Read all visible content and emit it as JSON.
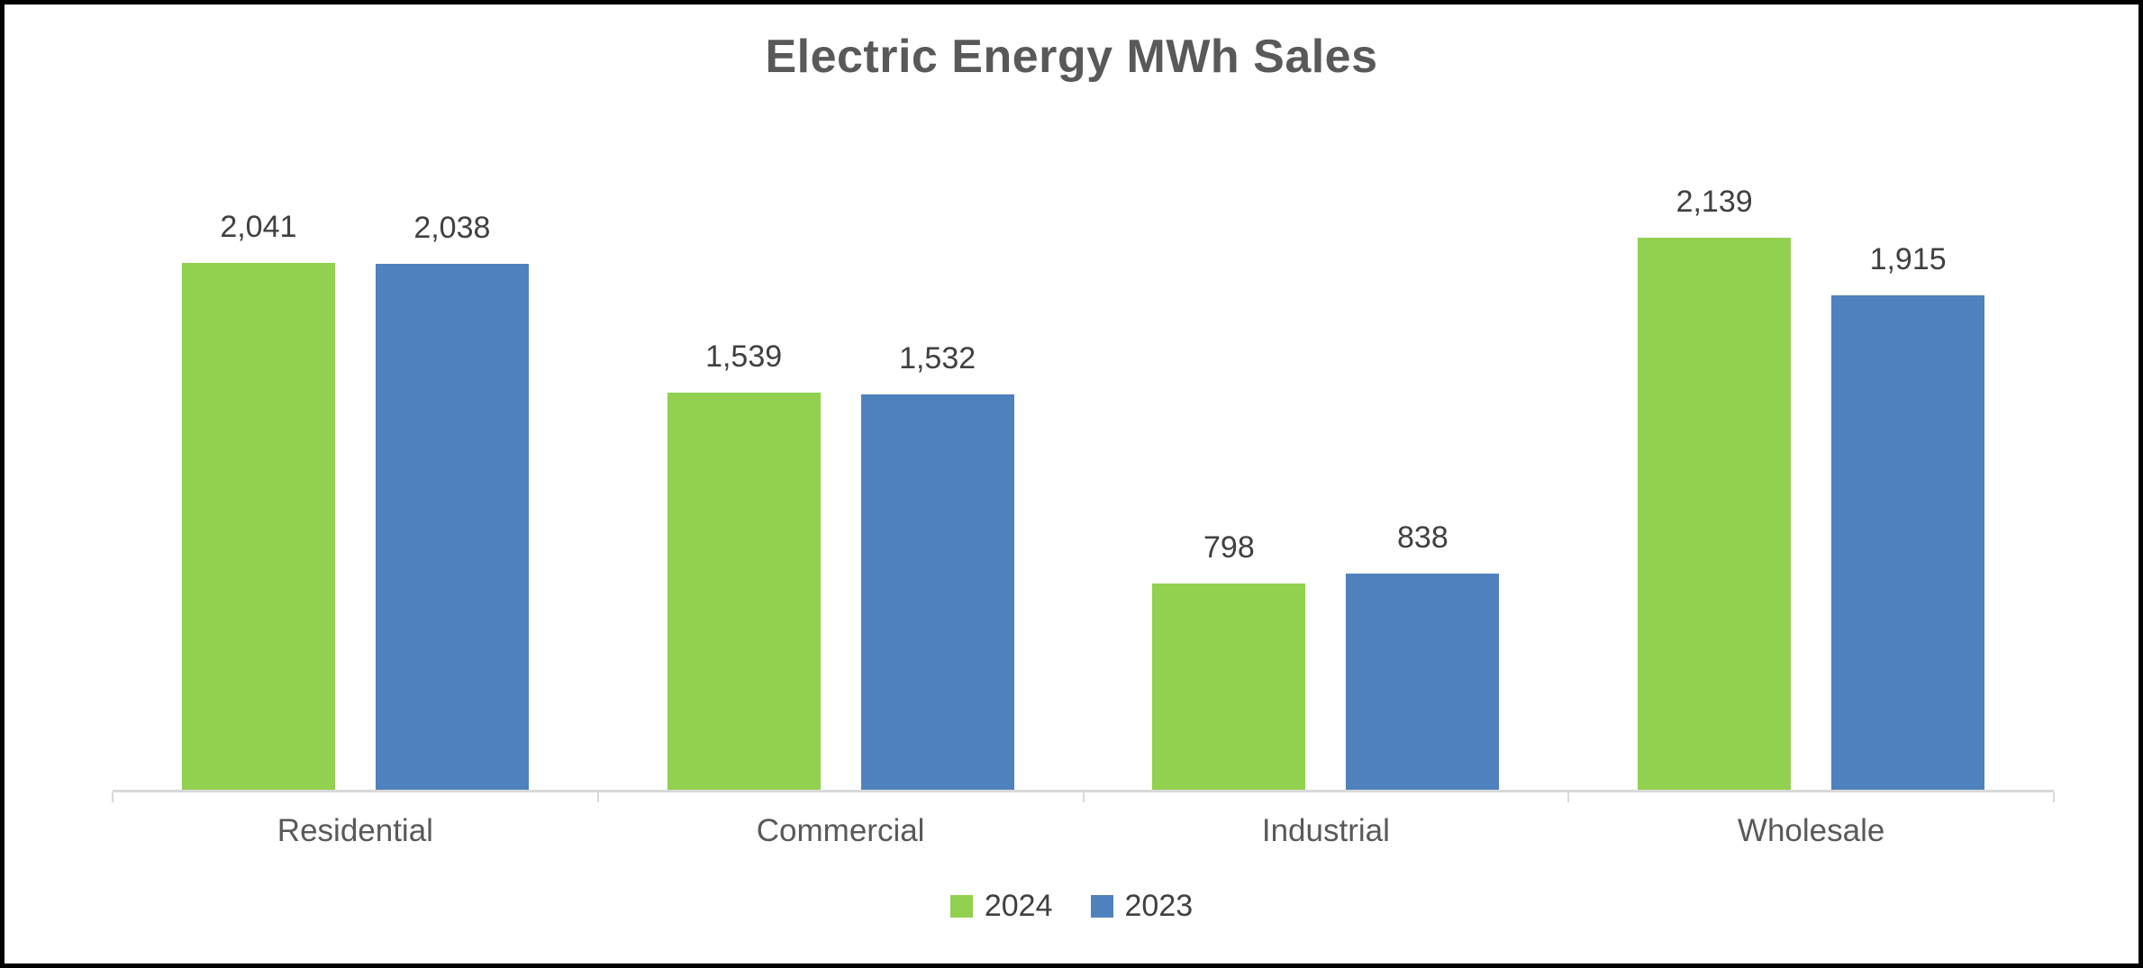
{
  "chart_data": {
    "type": "bar",
    "title": "Electric Energy MWh Sales",
    "categories": [
      "Residential",
      "Commercial",
      "Industrial",
      "Wholesale"
    ],
    "series": [
      {
        "name": "2024",
        "values": [
          2041,
          1539,
          798,
          2139
        ],
        "color": "#92D050"
      },
      {
        "name": "2023",
        "values": [
          2038,
          1532,
          838,
          1915
        ],
        "color": "#4F81BD"
      }
    ],
    "data_labels": {
      "2024": [
        "2,041",
        "1,539",
        "798",
        "2,139"
      ],
      "2023": [
        "2,038",
        "1,532",
        "838",
        "1,915"
      ]
    },
    "legend_entries": [
      "2024",
      "2023"
    ],
    "legend_position": "bottom",
    "grid": false,
    "y_axis_visible": false,
    "ylim": [
      0,
      2600
    ],
    "xlabel": "",
    "ylabel": ""
  },
  "colors": {
    "series_2024": "#92D050",
    "series_2023": "#4F81BD",
    "title_text": "#595959",
    "data_label_text": "#404040",
    "category_label_text": "#595959",
    "axis_line": "#D9D9D9",
    "frame_border": "#000000",
    "background": "#FFFFFF"
  }
}
